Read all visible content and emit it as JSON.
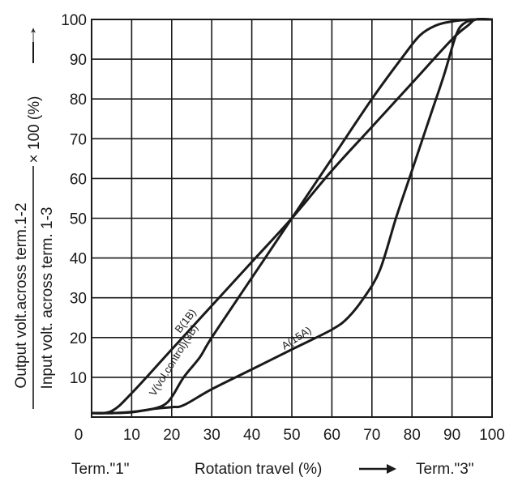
{
  "chart_data": {
    "type": "line",
    "x": [
      0,
      10,
      20,
      30,
      40,
      50,
      60,
      70,
      80,
      90,
      100
    ],
    "xlim": [
      0,
      100
    ],
    "ylim": [
      0,
      100
    ],
    "grid": true,
    "x_tick_labels": [
      "0",
      "10",
      "20",
      "30",
      "40",
      "50",
      "60",
      "70",
      "80",
      "90",
      "100"
    ],
    "y_tick_labels": [
      "10",
      "20",
      "30",
      "40",
      "50",
      "60",
      "70",
      "80",
      "90",
      "100"
    ],
    "ylabel": {
      "numerator": "Output volt.across term.1-2",
      "denominator": "Input volt. across term.  1-3",
      "multiplier": "× 100 (%)",
      "arrow": "↑"
    },
    "footer": {
      "left": "Term.\"1\"",
      "center": "Rotation travel (%)",
      "right": "Term.\"3\""
    },
    "series": [
      {
        "name": "B(1B)",
        "label": "B(1B)",
        "points": [
          [
            0,
            1
          ],
          [
            5,
            1.5
          ],
          [
            10,
            6
          ],
          [
            20,
            17
          ],
          [
            30,
            28
          ],
          [
            40,
            39
          ],
          [
            50,
            50
          ],
          [
            60,
            62
          ],
          [
            70,
            73
          ],
          [
            80,
            84
          ],
          [
            90,
            95
          ],
          [
            94,
            98.5
          ],
          [
            96,
            100
          ],
          [
            100,
            100
          ]
        ]
      },
      {
        "name": "V(vol.control)(3B)",
        "label": "V(vol.control)(3B)",
        "points": [
          [
            0,
            1
          ],
          [
            5,
            1
          ],
          [
            10,
            1.3
          ],
          [
            15,
            2
          ],
          [
            18,
            3
          ],
          [
            20,
            5
          ],
          [
            23,
            10
          ],
          [
            27,
            15
          ],
          [
            30,
            20
          ],
          [
            40,
            35
          ],
          [
            50,
            50
          ],
          [
            60,
            65
          ],
          [
            70,
            80
          ],
          [
            78,
            91
          ],
          [
            82,
            96
          ],
          [
            86,
            98.5
          ],
          [
            90,
            99.5
          ],
          [
            95,
            100
          ],
          [
            100,
            100
          ]
        ]
      },
      {
        "name": "A(15A)",
        "label": "A(15A)",
        "points": [
          [
            0,
            1
          ],
          [
            5,
            1
          ],
          [
            10,
            1.2
          ],
          [
            15,
            2
          ],
          [
            20,
            2.5
          ],
          [
            23,
            3
          ],
          [
            30,
            7
          ],
          [
            40,
            12
          ],
          [
            50,
            17
          ],
          [
            60,
            22
          ],
          [
            64,
            25
          ],
          [
            68,
            30
          ],
          [
            72,
            37
          ],
          [
            76,
            50
          ],
          [
            80,
            62
          ],
          [
            85,
            77
          ],
          [
            88,
            86
          ],
          [
            91,
            96
          ],
          [
            93,
            99
          ],
          [
            96,
            100
          ],
          [
            100,
            100
          ]
        ]
      }
    ]
  }
}
